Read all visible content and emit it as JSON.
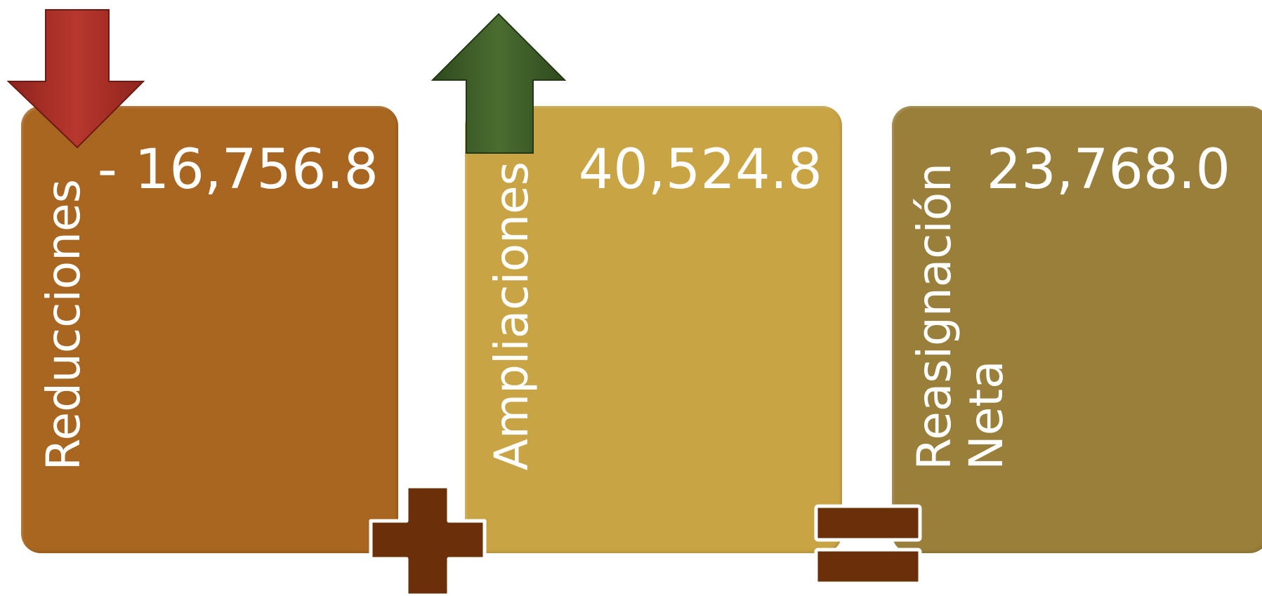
{
  "colors": {
    "reducciones": "#a86621",
    "ampliaciones": "#c9a445",
    "neta": "#9a7f3b",
    "down_arrow": "#a8322a",
    "up_arrow": "#3e5e28",
    "operator": "#6b3009"
  },
  "cards": {
    "reducciones": {
      "label": "Reducciones",
      "value": "- 16,756.8"
    },
    "ampliaciones": {
      "label": "Ampliaciones",
      "value": "40,524.8"
    },
    "neta": {
      "label_line1": "Reasignación",
      "label_line2": "Neta",
      "value": "23,768.0"
    }
  },
  "icons": {
    "down": "arrow-down-icon",
    "up": "arrow-up-icon",
    "plus": "plus-icon",
    "equals": "equals-icon"
  }
}
